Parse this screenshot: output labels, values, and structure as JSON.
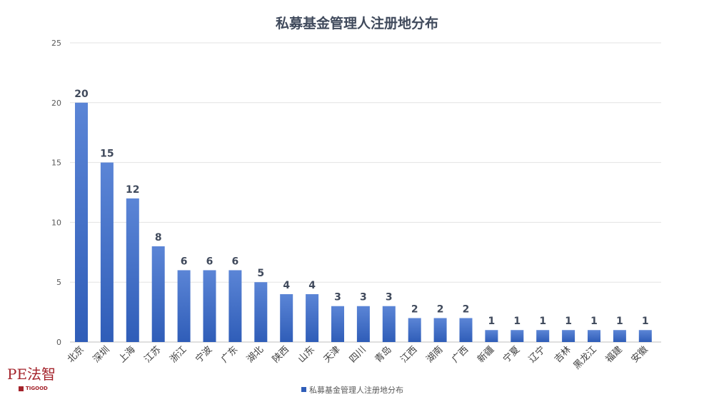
{
  "chart_data": {
    "type": "bar",
    "title": "私募基金管理人注册地分布",
    "categories": [
      "北京",
      "深圳",
      "上海",
      "江苏",
      "浙江",
      "宁波",
      "广东",
      "湖北",
      "陕西",
      "山东",
      "天津",
      "四川",
      "青岛",
      "江西",
      "湖南",
      "广西",
      "新疆",
      "宁夏",
      "辽宁",
      "吉林",
      "黑龙江",
      "福建",
      "安徽"
    ],
    "series": [
      {
        "name": "私募基金管理人注册地分布",
        "values": [
          20,
          15,
          12,
          8,
          6,
          6,
          6,
          5,
          4,
          4,
          3,
          3,
          3,
          2,
          2,
          2,
          1,
          1,
          1,
          1,
          1,
          1,
          1
        ]
      }
    ],
    "ylim": [
      0,
      25
    ],
    "yticks": [
      0,
      5,
      10,
      15,
      20,
      25
    ],
    "grid": true,
    "legend": "bottom",
    "colors": {
      "bar_top": "#5b85d6",
      "bar_bottom": "#2f5db8",
      "grid": "#e3e3e3",
      "label": "#404a5c"
    }
  },
  "logo": {
    "main": "PE法智",
    "sub": "TIGOOD"
  }
}
